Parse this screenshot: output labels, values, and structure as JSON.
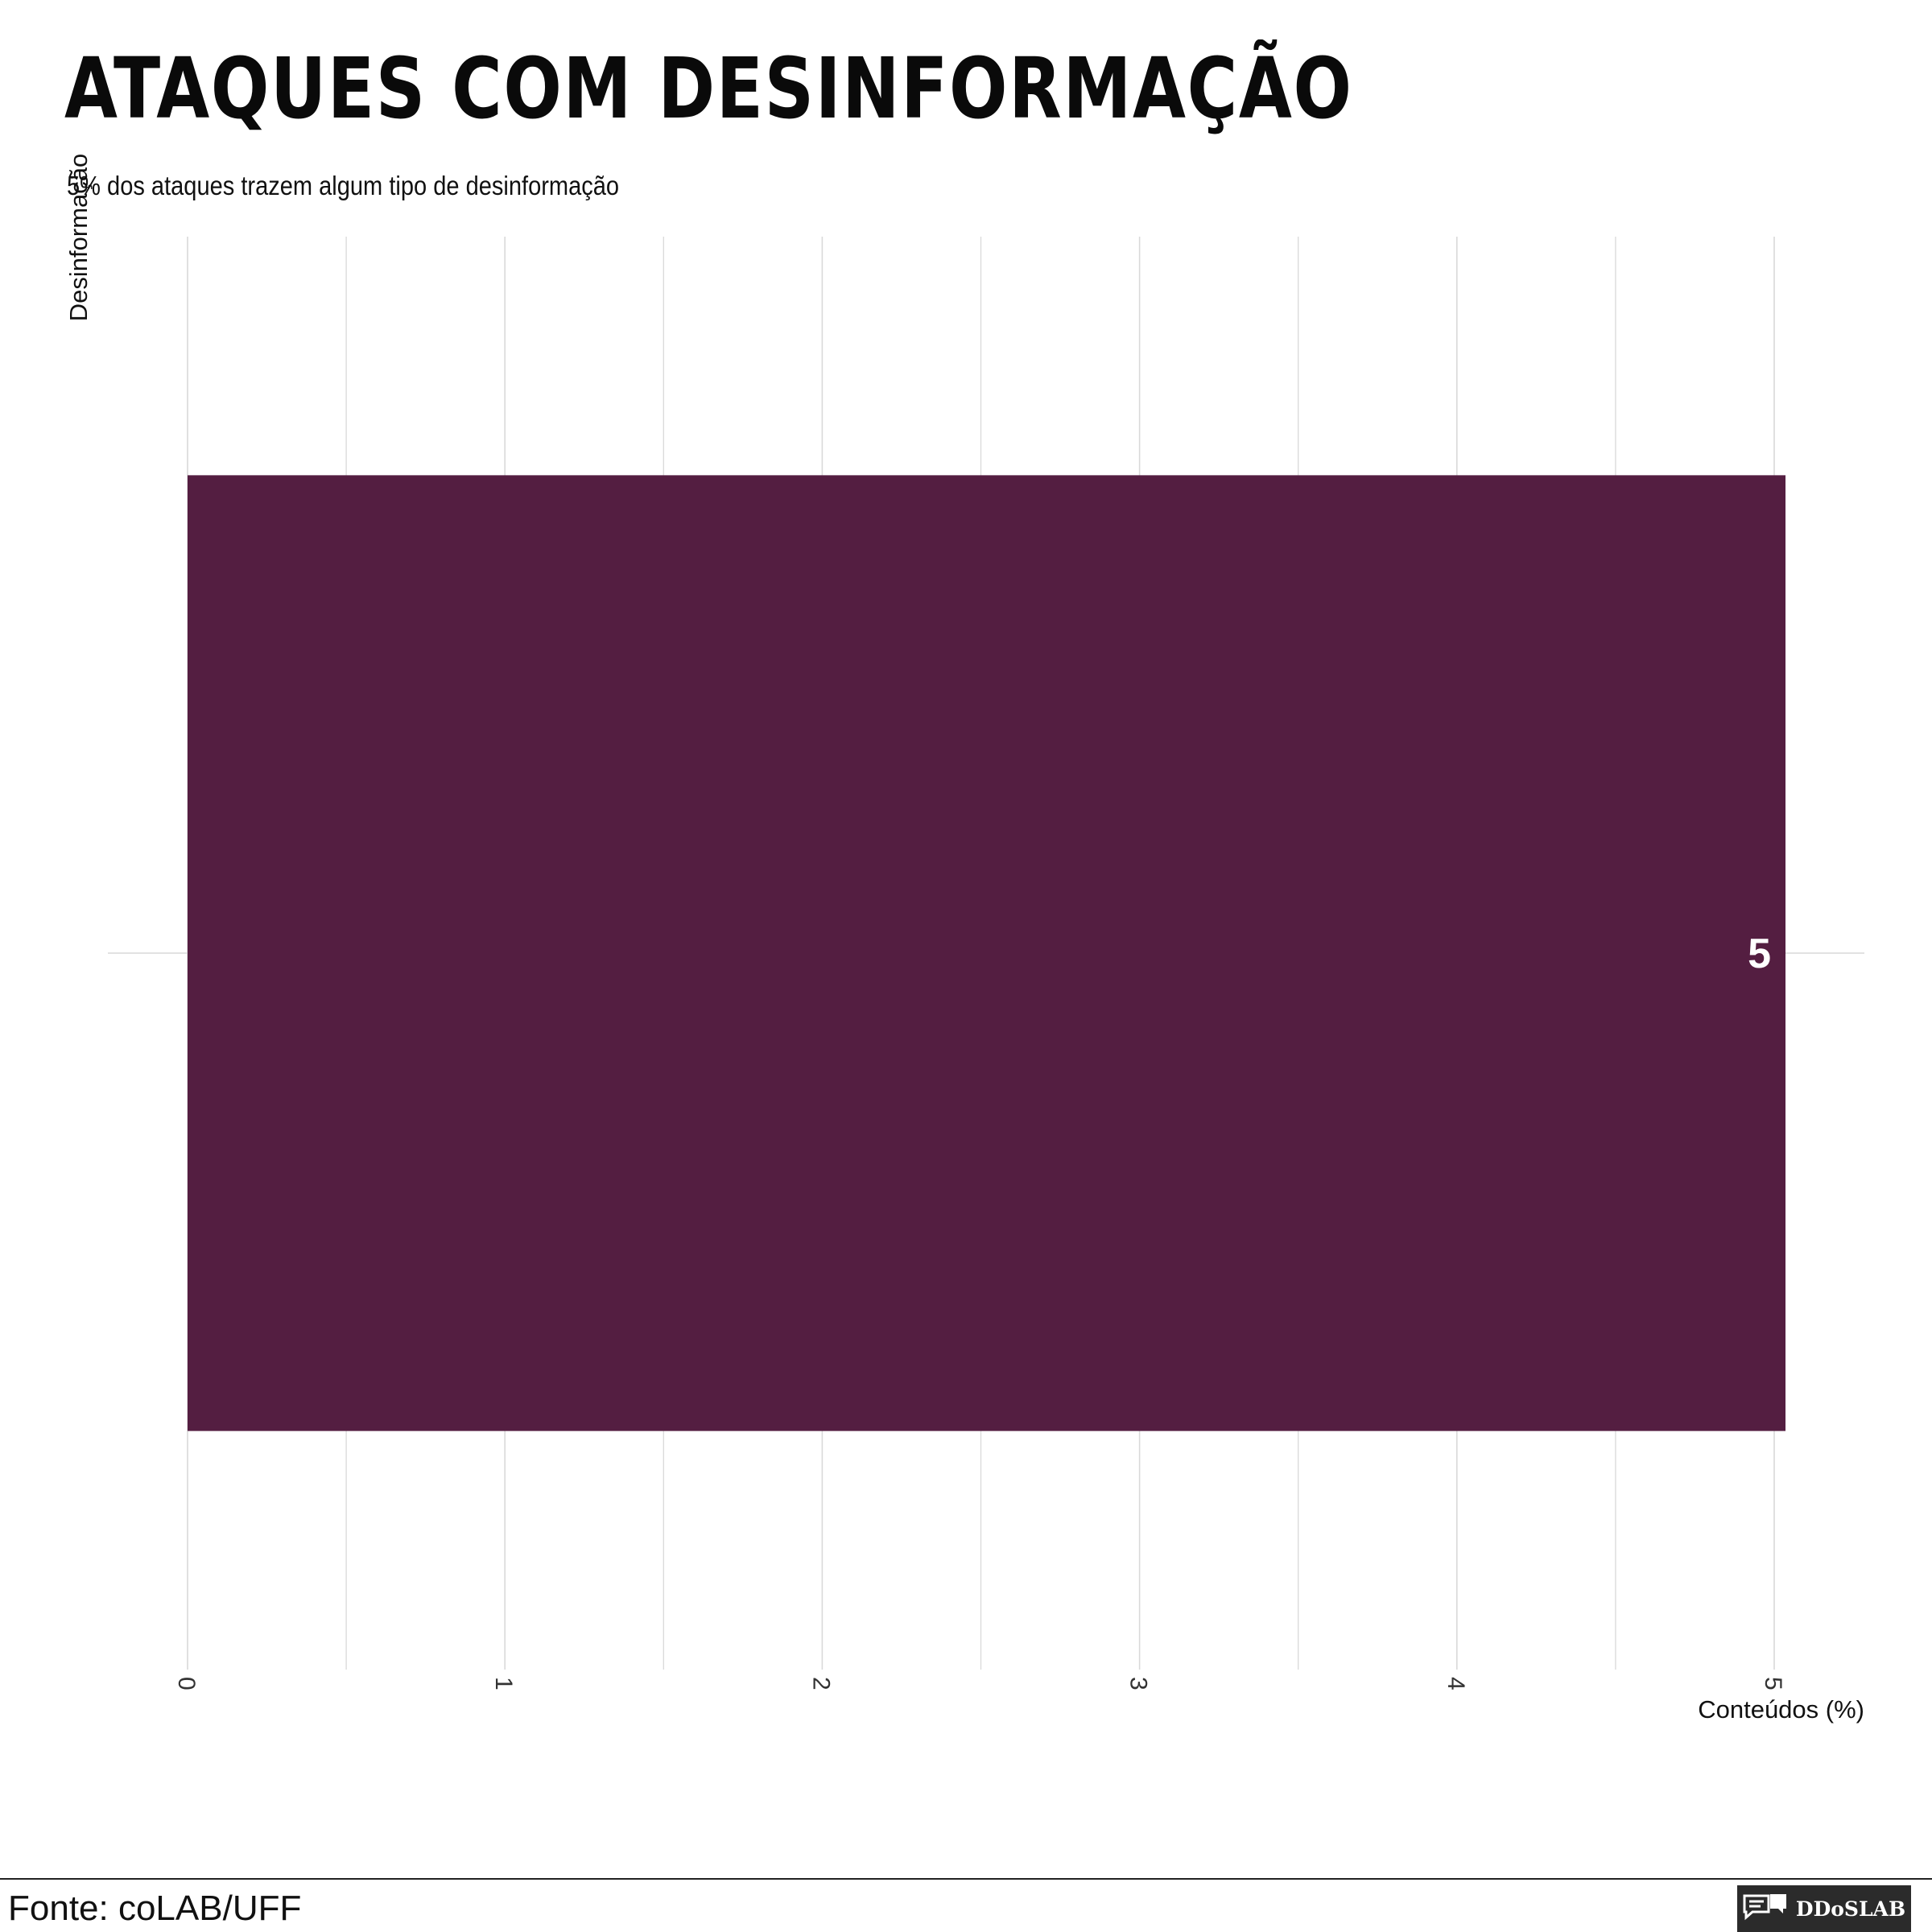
{
  "header": {
    "title": "ATAQUES COM DESINFORMAÇÃO",
    "subtitle": "5% dos ataques trazem algum tipo de desinformação"
  },
  "footer": {
    "source": "Fonte: coLAB/UFF",
    "logo_text": "DDoSLAB"
  },
  "colors": {
    "bar": "#541e41",
    "grid": "#d9d9d9",
    "label": "#ffffff"
  },
  "chart_data": {
    "type": "bar",
    "orientation": "horizontal",
    "categories": [
      ""
    ],
    "values": [
      5
    ],
    "data_labels": [
      "5"
    ],
    "xlabel": "Conteúdos (%)",
    "ylabel": "Desinformação",
    "xlim": [
      0,
      5
    ],
    "x_ticks": [
      0,
      1,
      2,
      3,
      4,
      5
    ],
    "x_tick_labels": [
      "0",
      "1",
      "2",
      "3",
      "4",
      "5"
    ],
    "grid": true
  }
}
